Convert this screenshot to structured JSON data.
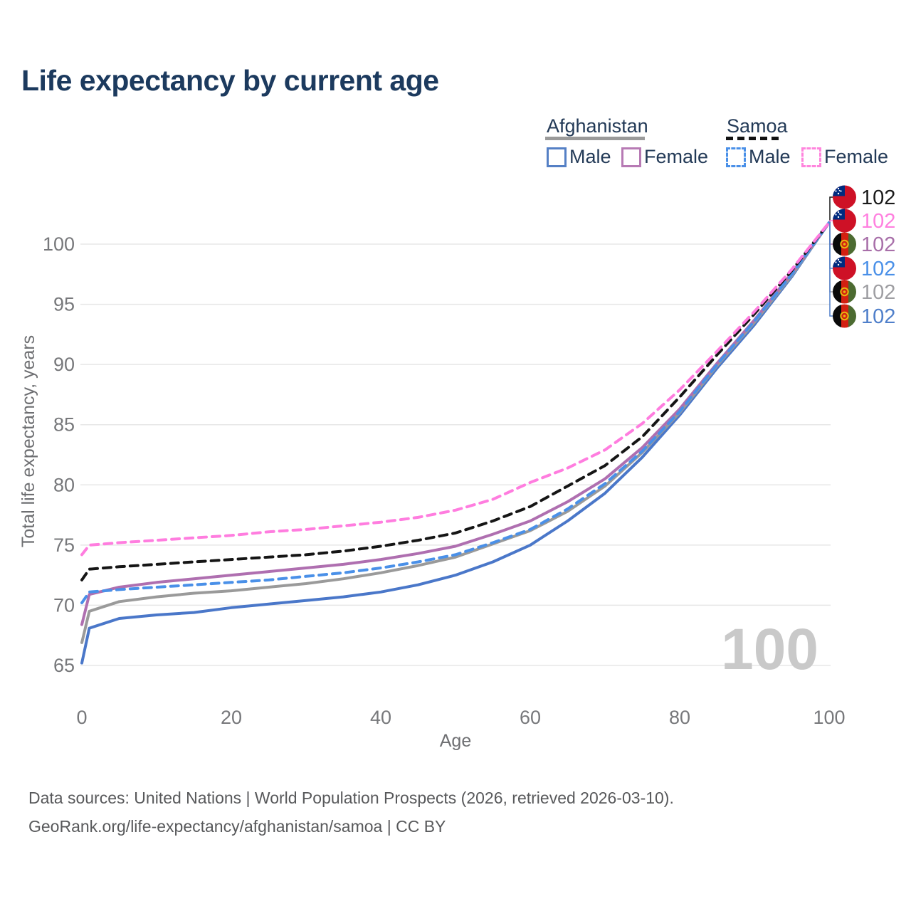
{
  "title": "Life expectancy by current age",
  "watermark_age": "100",
  "legend": {
    "groups": [
      {
        "label": "Afghanistan",
        "line_style": "solid",
        "underline_color": "#9a9a9a",
        "items": [
          {
            "label": "Male",
            "color": "#5580c5",
            "dashed": false
          },
          {
            "label": "Female",
            "color": "#b77ab4",
            "dashed": false
          }
        ]
      },
      {
        "label": "Samoa",
        "line_style": "dashed",
        "underline_color": "#121212",
        "items": [
          {
            "label": "Male",
            "color": "#4a90e8",
            "dashed": true
          },
          {
            "label": "Female",
            "color": "#ff85dd",
            "dashed": true
          }
        ]
      }
    ]
  },
  "footer": {
    "line1": "Data sources: United Nations | World Population Prospects (2026, retrieved 2026-03-10).",
    "line2": "GeoRank.org/life-expectancy/afghanistan/samoa | CC BY"
  },
  "chart_data": {
    "type": "line",
    "title": "Life expectancy by current age",
    "xlabel": "Age",
    "ylabel": "Total life expectancy, years",
    "xticks": [
      0,
      20,
      40,
      60,
      80,
      100
    ],
    "yticks": [
      65,
      70,
      75,
      80,
      85,
      90,
      95,
      100
    ],
    "xlim": [
      0,
      100
    ],
    "ylim": [
      65,
      102
    ],
    "grid": "horizontal",
    "legend_position": "top-right",
    "x": [
      0,
      1,
      5,
      10,
      15,
      20,
      25,
      30,
      35,
      40,
      45,
      50,
      55,
      60,
      65,
      70,
      75,
      80,
      85,
      90,
      95,
      100
    ],
    "series": [
      {
        "id": "afghanistan-male",
        "country": "Afghanistan",
        "sex": "Male",
        "color": "#4a77c9",
        "dashed": false,
        "values": [
          65.2,
          68.1,
          68.9,
          69.2,
          69.4,
          69.8,
          70.1,
          70.4,
          70.7,
          71.1,
          71.7,
          72.5,
          73.6,
          75.0,
          77.0,
          79.3,
          82.3,
          85.8,
          89.7,
          93.3,
          97.3,
          101.8
        ]
      },
      {
        "id": "afghanistan-total",
        "country": "Afghanistan",
        "sex": "Both",
        "color": "#9a9a9a",
        "dashed": false,
        "values": [
          66.9,
          69.5,
          70.3,
          70.7,
          71.0,
          71.2,
          71.5,
          71.8,
          72.2,
          72.7,
          73.3,
          74.0,
          75.1,
          76.2,
          77.8,
          79.9,
          82.7,
          86.0,
          89.9,
          93.5,
          97.4,
          101.8
        ]
      },
      {
        "id": "afghanistan-female",
        "country": "Afghanistan",
        "sex": "Female",
        "color": "#af6fb0",
        "dashed": false,
        "values": [
          68.4,
          70.9,
          71.5,
          71.9,
          72.2,
          72.5,
          72.8,
          73.1,
          73.4,
          73.8,
          74.3,
          74.9,
          75.9,
          77.0,
          78.6,
          80.5,
          83.1,
          86.3,
          90.1,
          93.7,
          97.6,
          101.8
        ]
      },
      {
        "id": "samoa-male",
        "country": "Samoa",
        "sex": "Male",
        "color": "#4a90e8",
        "dashed": true,
        "values": [
          70.2,
          71.1,
          71.3,
          71.5,
          71.7,
          71.9,
          72.1,
          72.4,
          72.7,
          73.1,
          73.6,
          74.2,
          75.2,
          76.3,
          78.0,
          80.1,
          82.8,
          86.1,
          90.0,
          93.6,
          97.5,
          101.8
        ]
      },
      {
        "id": "samoa-total",
        "country": "Samoa",
        "sex": "Both",
        "color": "#151515",
        "dashed": true,
        "values": [
          72.1,
          73.0,
          73.2,
          73.4,
          73.6,
          73.8,
          74.0,
          74.2,
          74.5,
          74.9,
          75.4,
          76.0,
          77.0,
          78.2,
          79.9,
          81.6,
          84.0,
          87.3,
          90.8,
          94.2,
          97.8,
          101.8
        ]
      },
      {
        "id": "samoa-female",
        "country": "Samoa",
        "sex": "Female",
        "color": "#ff7ddf",
        "dashed": true,
        "values": [
          74.2,
          75.0,
          75.2,
          75.4,
          75.6,
          75.8,
          76.1,
          76.3,
          76.6,
          76.9,
          77.3,
          77.9,
          78.8,
          80.2,
          81.4,
          82.9,
          85.1,
          87.9,
          91.1,
          94.4,
          97.9,
          101.8
        ]
      }
    ],
    "end_labels": [
      {
        "flag": "samoa",
        "series": "samoa-total",
        "value": "102",
        "color": "#1a1a1a"
      },
      {
        "flag": "samoa",
        "series": "samoa-female",
        "value": "102",
        "color": "#ff80df"
      },
      {
        "flag": "afghanistan",
        "series": "afghanistan-female",
        "value": "102",
        "color": "#a86fa9"
      },
      {
        "flag": "samoa",
        "series": "samoa-male",
        "value": "102",
        "color": "#4a90e8"
      },
      {
        "flag": "afghanistan",
        "series": "afghanistan-total",
        "value": "102",
        "color": "#9e9ea2"
      },
      {
        "flag": "afghanistan",
        "series": "afghanistan-male",
        "value": "102",
        "color": "#4f7fca"
      }
    ]
  }
}
